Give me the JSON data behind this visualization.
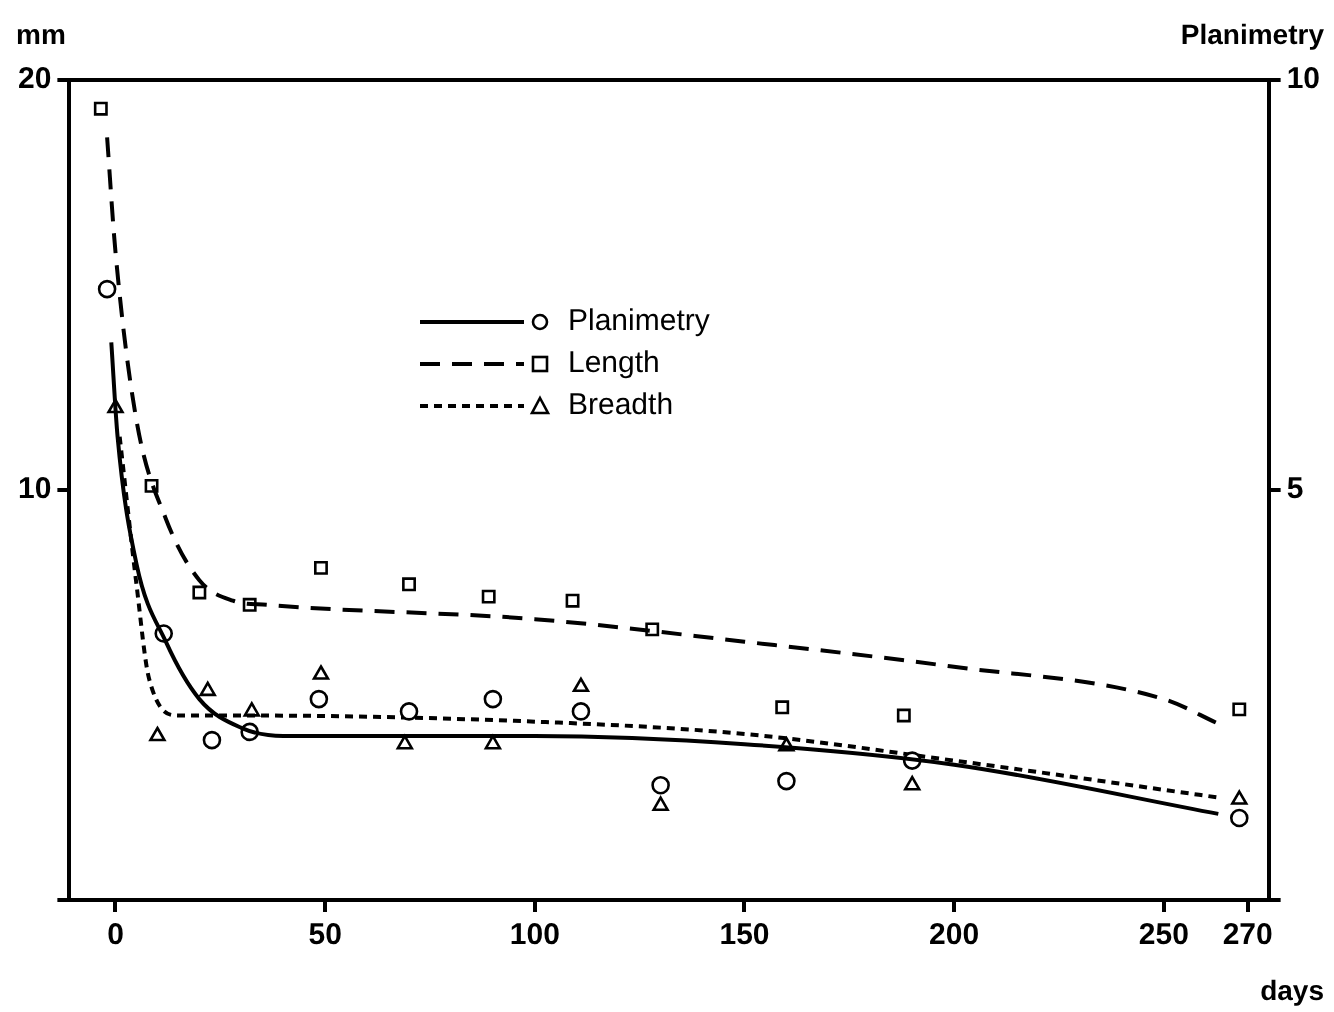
{
  "chart_data": {
    "type": "line",
    "xlabel": "days",
    "ylabel": "mm",
    "y2label": "Planimetry",
    "xlim": [
      -11,
      275
    ],
    "xticks": [
      0,
      50,
      100,
      150,
      200,
      250,
      270
    ],
    "ylim": [
      0,
      20
    ],
    "yticks": [
      {
        "value": 0,
        "label": null
      },
      10,
      20
    ],
    "y2lim": [
      0,
      10
    ],
    "y2ticks": [
      {
        "value": 0,
        "label": null
      },
      5,
      10
    ],
    "grid": false,
    "legend": "top",
    "series": [
      {
        "name": "Planimetry",
        "axis": "y2",
        "color": "#000000",
        "line_style": "solid",
        "marker": "none",
        "x": [
          -1,
          0.5,
          5,
          12,
          20,
          30,
          40,
          100,
          150,
          200,
          263
        ],
        "values": [
          6.8,
          5.65,
          4.1,
          3.15,
          2.45,
          2.1,
          2.0,
          2.0,
          1.9,
          1.65,
          1.05
        ]
      },
      {
        "type": "scatter",
        "axis": "y2",
        "color": "#000000",
        "marker": "circle",
        "x": [
          -2,
          11.5,
          23,
          32,
          48.5,
          70,
          90,
          111,
          130,
          160,
          190,
          268
        ],
        "values": [
          7.45,
          3.25,
          1.95,
          2.05,
          2.45,
          2.3,
          2.45,
          2.3,
          1.4,
          1.45,
          1.7,
          1.0
        ]
      },
      {
        "name": "Length",
        "color": "#000000",
        "line_style": "dashed",
        "marker": "none",
        "x": [
          -2,
          0,
          5,
          12,
          20,
          28,
          36,
          100,
          150,
          199,
          250,
          263
        ],
        "values": [
          18.6,
          15.8,
          11.7,
          9.3,
          7.8,
          7.3,
          7.2,
          6.85,
          6.3,
          5.7,
          4.9,
          4.3
        ]
      },
      {
        "type": "scatter",
        "color": "#000000",
        "marker": "square",
        "x": [
          -3.5,
          8.6,
          20,
          32,
          49,
          70,
          89,
          109,
          128,
          159,
          188,
          268
        ],
        "values": [
          19.3,
          10.1,
          7.5,
          7.2,
          8.1,
          7.7,
          7.4,
          7.3,
          6.6,
          4.7,
          4.5,
          4.65
        ]
      },
      {
        "name": "Breadth",
        "color": "#000000",
        "line_style": "dotted",
        "marker": "none",
        "x": [
          1,
          5,
          8,
          15,
          30,
          100,
          150,
          200,
          263
        ],
        "values": [
          11.3,
          7.7,
          5.4,
          4.5,
          4.5,
          4.35,
          4.05,
          3.4,
          2.5
        ]
      },
      {
        "type": "scatter",
        "color": "#000000",
        "marker": "triangle",
        "x": [
          0,
          10,
          22,
          32.5,
          49,
          69,
          90,
          111,
          130,
          160,
          190,
          268
        ],
        "values": [
          12,
          4.0,
          5.1,
          4.6,
          5.5,
          3.8,
          3.8,
          5.2,
          2.3,
          3.75,
          2.8,
          2.45
        ]
      }
    ]
  }
}
